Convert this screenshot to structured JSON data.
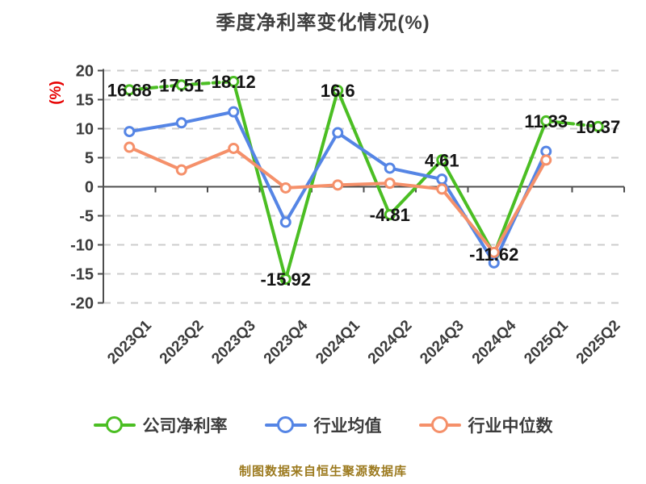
{
  "title": {
    "text": "季度净利率变化情况(%)"
  },
  "y_axis": {
    "unit_label": "(%)",
    "unit_color": "#e60000"
  },
  "footer": {
    "text": "制图数据来自恒生聚源数据库",
    "color": "#9c7a1f"
  },
  "chart_data": {
    "type": "line",
    "title": "季度净利率变化情况(%)",
    "xlabel": "",
    "ylabel": "(%)",
    "ylim": [
      -20,
      20
    ],
    "yticks": [
      20,
      15,
      10,
      5,
      0,
      -5,
      -10,
      -15,
      -20
    ],
    "grid": true,
    "legend_position": "bottom",
    "categories": [
      "2023Q1",
      "2023Q2",
      "2023Q3",
      "2023Q4",
      "2024Q1",
      "2024Q2",
      "2024Q3",
      "2024Q4",
      "2025Q1",
      "2025Q2"
    ],
    "series": [
      {
        "id": "company",
        "name": "公司净利率",
        "color": "#4bbe23",
        "values": [
          16.68,
          17.51,
          18.12,
          -15.92,
          16.6,
          -4.81,
          4.61,
          -11.62,
          11.33,
          10.37
        ],
        "show_labels": true,
        "dashed_segments": [
          0,
          1,
          8
        ]
      },
      {
        "id": "industry-avg",
        "name": "行业均值",
        "color": "#5585e5",
        "values": [
          9.5,
          11.0,
          12.9,
          -6.1,
          9.3,
          3.2,
          1.3,
          -13.1,
          6.1,
          null
        ],
        "show_labels": false,
        "dashed_segments": []
      },
      {
        "id": "industry-median",
        "name": "行业中位数",
        "color": "#f5906a",
        "values": [
          6.8,
          2.9,
          6.6,
          -0.2,
          0.3,
          0.6,
          -0.4,
          -11.3,
          4.6,
          null
        ],
        "show_labels": false,
        "dashed_segments": []
      }
    ],
    "label_color": "#141414",
    "axis_color": "#4d4d4d",
    "grid_color": "#cccccc",
    "tick_label_color": "#3c3c3c"
  }
}
